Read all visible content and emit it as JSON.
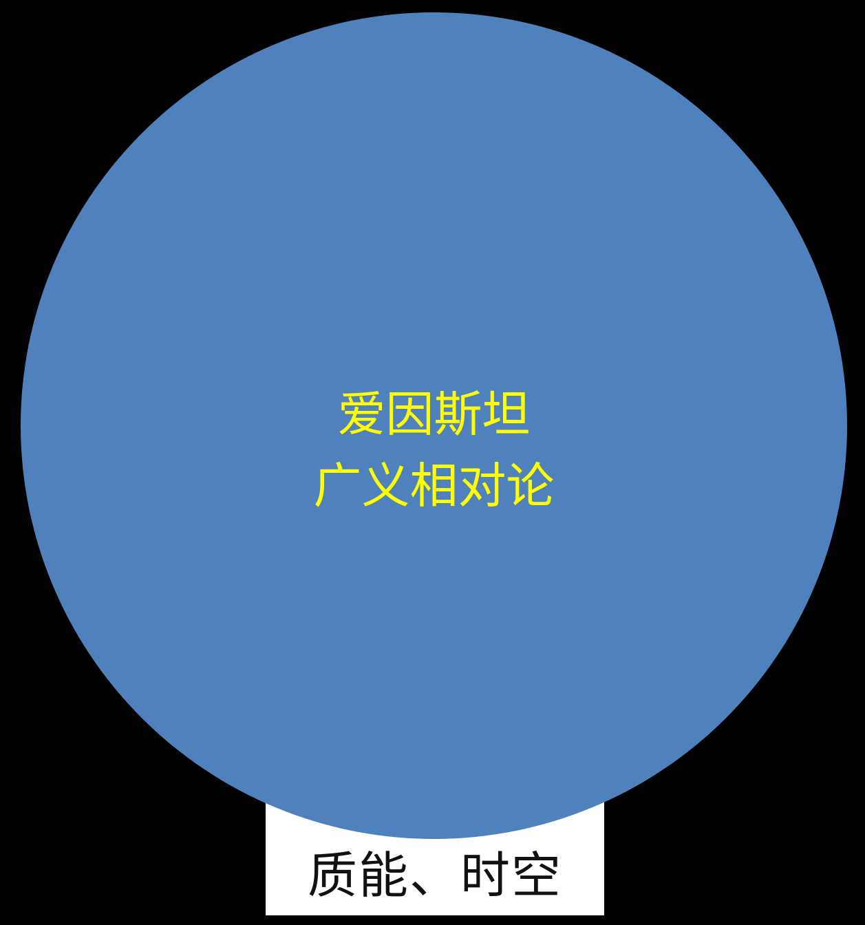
{
  "diagram": {
    "main_circle": {
      "line1": "爱因斯坦",
      "line2": "广义相对论"
    },
    "base_label": "质能、时空"
  },
  "colors": {
    "background": "#000000",
    "circle_fill": "#4f81bd",
    "circle_text": "#ffff00",
    "label_box": "#ffffff",
    "label_text": "#111111"
  }
}
